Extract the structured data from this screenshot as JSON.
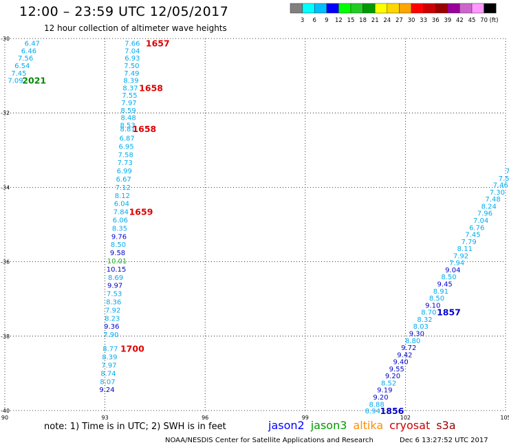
{
  "header": {
    "title": "12:00 – 23:59 UTC 12/05/2017",
    "subtitle": "12 hour collection of altimeter wave heights"
  },
  "colorbar": {
    "labels": [
      "3",
      "6",
      "9",
      "12",
      "15",
      "18",
      "21",
      "24",
      "27",
      "30",
      "33",
      "36",
      "39",
      "42",
      "45",
      "70"
    ],
    "unit": "(ft)",
    "colors": [
      "#808080",
      "#00ffff",
      "#00bfff",
      "#0000ff",
      "#00ff00",
      "#22cc22",
      "#009900",
      "#ffff00",
      "#ffd700",
      "#ffa500",
      "#ff0000",
      "#cc0000",
      "#990000",
      "#990099",
      "#cc66cc",
      "#ff99ff",
      "#000000"
    ]
  },
  "footer": {
    "note": "note:  1) Time is in UTC; 2) SWH is in feet",
    "credit": "NOAA/NESDIS Center for Satellite Applications and Research",
    "timestamp": "Dec  6 13:27:52 UTC 2017"
  },
  "legend": [
    {
      "name": "jason2",
      "color": "#0000ff"
    },
    {
      "name": "jason3",
      "color": "#009900"
    },
    {
      "name": "altika",
      "color": "#ff8c00"
    },
    {
      "name": "cryosat",
      "color": "#cc0000"
    },
    {
      "name": "s3a",
      "color": "#990000"
    }
  ],
  "chart_data": {
    "type": "scatter",
    "title": "12:00 – 23:59 UTC 12/05/2017",
    "xlim": [
      90,
      105
    ],
    "ylim": [
      -40,
      -30
    ],
    "x_ticks": [
      "90",
      "93",
      "96",
      "99",
      "102",
      "105"
    ],
    "y_ticks": [
      "-30",
      "-32",
      "-34",
      "-36",
      "-38",
      "-40"
    ],
    "grid": true,
    "points": [
      {
        "x": 90.82,
        "y": -30.12,
        "label": "6.47",
        "color": "#00aaee"
      },
      {
        "x": 90.72,
        "y": -30.32,
        "label": "6.46",
        "color": "#00aaee"
      },
      {
        "x": 90.62,
        "y": -30.52,
        "label": "7.56",
        "color": "#00aaee"
      },
      {
        "x": 90.52,
        "y": -30.72,
        "label": "6.54",
        "color": "#00aaee"
      },
      {
        "x": 90.42,
        "y": -30.92,
        "label": "7.45",
        "color": "#00aaee"
      },
      {
        "x": 90.32,
        "y": -31.12,
        "label": "7.09",
        "color": "#00aaee"
      },
      {
        "x": 93.82,
        "y": -30.12,
        "label": "7.66",
        "color": "#00aaee"
      },
      {
        "x": 93.82,
        "y": -30.32,
        "label": "7.04",
        "color": "#00aaee"
      },
      {
        "x": 93.82,
        "y": -30.52,
        "label": "6.93",
        "color": "#00aaee"
      },
      {
        "x": 93.8,
        "y": -30.72,
        "label": "7.50",
        "color": "#00aaee"
      },
      {
        "x": 93.8,
        "y": -30.92,
        "label": "7.49",
        "color": "#00aaee"
      },
      {
        "x": 93.78,
        "y": -31.12,
        "label": "8.39",
        "color": "#00aaee"
      },
      {
        "x": 93.76,
        "y": -31.32,
        "label": "8.37",
        "color": "#00aaee"
      },
      {
        "x": 93.74,
        "y": -31.52,
        "label": "7.55",
        "color": "#00aaee"
      },
      {
        "x": 93.72,
        "y": -31.72,
        "label": "7.97",
        "color": "#00aaee"
      },
      {
        "x": 93.7,
        "y": -31.92,
        "label": "8.59",
        "color": "#00aaee"
      },
      {
        "x": 93.7,
        "y": -32.12,
        "label": "8.48",
        "color": "#00aaee"
      },
      {
        "x": 93.68,
        "y": -32.32,
        "label": "8.53",
        "color": "#00aaee"
      },
      {
        "x": 93.68,
        "y": -32.42,
        "label": "8.81",
        "color": "#00aaee"
      },
      {
        "x": 93.66,
        "y": -32.67,
        "label": "6.87",
        "color": "#00aaee"
      },
      {
        "x": 93.64,
        "y": -32.89,
        "label": "6.95",
        "color": "#00aaee"
      },
      {
        "x": 93.62,
        "y": -33.11,
        "label": "7.58",
        "color": "#00aaee"
      },
      {
        "x": 93.6,
        "y": -33.33,
        "label": "7.73",
        "color": "#00aaee"
      },
      {
        "x": 93.58,
        "y": -33.55,
        "label": "6.99",
        "color": "#00aaee"
      },
      {
        "x": 93.56,
        "y": -33.77,
        "label": "6.67",
        "color": "#00aaee"
      },
      {
        "x": 93.54,
        "y": -33.99,
        "label": "7.12",
        "color": "#00aaee"
      },
      {
        "x": 93.52,
        "y": -34.21,
        "label": "8.12",
        "color": "#00aaee"
      },
      {
        "x": 93.5,
        "y": -34.43,
        "label": "6.04",
        "color": "#00aaee"
      },
      {
        "x": 93.48,
        "y": -34.65,
        "label": "7.84",
        "color": "#00aaee"
      },
      {
        "x": 93.46,
        "y": -34.87,
        "label": "6.06",
        "color": "#00aaee"
      },
      {
        "x": 93.44,
        "y": -35.09,
        "label": "8.35",
        "color": "#00aaee"
      },
      {
        "x": 93.42,
        "y": -35.31,
        "label": "9.76",
        "color": "#0000cc"
      },
      {
        "x": 93.4,
        "y": -35.53,
        "label": "8.50",
        "color": "#00aaee"
      },
      {
        "x": 93.38,
        "y": -35.75,
        "label": "9.58",
        "color": "#0000cc"
      },
      {
        "x": 93.36,
        "y": -35.97,
        "label": "10.01",
        "color": "#22aa22"
      },
      {
        "x": 93.34,
        "y": -36.19,
        "label": "10.15",
        "color": "#0000cc"
      },
      {
        "x": 93.32,
        "y": -36.41,
        "label": "8.69",
        "color": "#00aaee"
      },
      {
        "x": 93.3,
        "y": -36.63,
        "label": "9.97",
        "color": "#0000cc"
      },
      {
        "x": 93.28,
        "y": -36.85,
        "label": "7.53",
        "color": "#00aaee"
      },
      {
        "x": 93.26,
        "y": -37.07,
        "label": "8.36",
        "color": "#00aaee"
      },
      {
        "x": 93.24,
        "y": -37.29,
        "label": "7.92",
        "color": "#00aaee"
      },
      {
        "x": 93.22,
        "y": -37.51,
        "label": "8.23",
        "color": "#00aaee"
      },
      {
        "x": 93.2,
        "y": -37.73,
        "label": "9.36",
        "color": "#0000cc"
      },
      {
        "x": 93.18,
        "y": -37.95,
        "label": "7.90",
        "color": "#00aaee"
      },
      {
        "x": 93.16,
        "y": -38.33,
        "label": "8.77",
        "color": "#00aaee"
      },
      {
        "x": 93.14,
        "y": -38.55,
        "label": "8.39",
        "color": "#00aaee"
      },
      {
        "x": 93.12,
        "y": -38.77,
        "label": "7.97",
        "color": "#00aaee"
      },
      {
        "x": 93.1,
        "y": -38.99,
        "label": "8.74",
        "color": "#00aaee"
      },
      {
        "x": 93.08,
        "y": -39.21,
        "label": "8.07",
        "color": "#00aaee"
      },
      {
        "x": 93.06,
        "y": -39.43,
        "label": "9.24",
        "color": "#0000cc"
      },
      {
        "x": 105.2,
        "y": -33.38,
        "label": "7.",
        "color": "#00aaee"
      },
      {
        "x": 105.1,
        "y": -33.55,
        "label": "7.",
        "color": "#00aaee"
      },
      {
        "x": 104.95,
        "y": -33.75,
        "label": "7.5",
        "color": "#00aaee"
      },
      {
        "x": 104.85,
        "y": -33.93,
        "label": "7.46",
        "color": "#00aaee"
      },
      {
        "x": 104.75,
        "y": -34.12,
        "label": "7.30",
        "color": "#00aaee"
      },
      {
        "x": 104.62,
        "y": -34.31,
        "label": "7.48",
        "color": "#00aaee"
      },
      {
        "x": 104.5,
        "y": -34.5,
        "label": "8.24",
        "color": "#00aaee"
      },
      {
        "x": 104.38,
        "y": -34.69,
        "label": "7.96",
        "color": "#00aaee"
      },
      {
        "x": 104.26,
        "y": -34.88,
        "label": "7.04",
        "color": "#00aaee"
      },
      {
        "x": 104.14,
        "y": -35.07,
        "label": "6.76",
        "color": "#00aaee"
      },
      {
        "x": 104.02,
        "y": -35.26,
        "label": "7.45",
        "color": "#00aaee"
      },
      {
        "x": 103.9,
        "y": -35.45,
        "label": "7.79",
        "color": "#00aaee"
      },
      {
        "x": 103.78,
        "y": -35.64,
        "label": "8.11",
        "color": "#00aaee"
      },
      {
        "x": 103.66,
        "y": -35.83,
        "label": "7.92",
        "color": "#00aaee"
      },
      {
        "x": 103.54,
        "y": -36.02,
        "label": "7.94",
        "color": "#00aaee"
      },
      {
        "x": 103.42,
        "y": -36.21,
        "label": "9.04",
        "color": "#0000cc"
      },
      {
        "x": 103.3,
        "y": -36.4,
        "label": "8.50",
        "color": "#00aaee"
      },
      {
        "x": 103.18,
        "y": -36.59,
        "label": "9.45",
        "color": "#0000cc"
      },
      {
        "x": 103.06,
        "y": -36.78,
        "label": "8.91",
        "color": "#00aaee"
      },
      {
        "x": 102.94,
        "y": -36.97,
        "label": "8.50",
        "color": "#00aaee"
      },
      {
        "x": 102.82,
        "y": -37.16,
        "label": "9.10",
        "color": "#0000cc"
      },
      {
        "x": 102.7,
        "y": -37.35,
        "label": "8.70",
        "color": "#00aaee"
      },
      {
        "x": 102.58,
        "y": -37.54,
        "label": "8.32",
        "color": "#00aaee"
      },
      {
        "x": 102.46,
        "y": -37.73,
        "label": "8.03",
        "color": "#00aaee"
      },
      {
        "x": 102.34,
        "y": -37.92,
        "label": "9.30",
        "color": "#0000cc"
      },
      {
        "x": 102.22,
        "y": -38.11,
        "label": "8.80",
        "color": "#00aaee"
      },
      {
        "x": 102.1,
        "y": -38.3,
        "label": "9.72",
        "color": "#0000cc"
      },
      {
        "x": 101.98,
        "y": -38.49,
        "label": "9.42",
        "color": "#0000cc"
      },
      {
        "x": 101.86,
        "y": -38.68,
        "label": "9.40",
        "color": "#0000cc"
      },
      {
        "x": 101.74,
        "y": -38.87,
        "label": "9.55",
        "color": "#0000cc"
      },
      {
        "x": 101.62,
        "y": -39.06,
        "label": "9.20",
        "color": "#0000cc"
      },
      {
        "x": 101.5,
        "y": -39.25,
        "label": "8.52",
        "color": "#00aaee"
      },
      {
        "x": 101.38,
        "y": -39.44,
        "label": "9.19",
        "color": "#0000cc"
      },
      {
        "x": 101.26,
        "y": -39.63,
        "label": "9.20",
        "color": "#0000cc"
      },
      {
        "x": 101.14,
        "y": -39.82,
        "label": "8.88",
        "color": "#00aaee"
      },
      {
        "x": 101.02,
        "y": -40.0,
        "label": "8.94",
        "color": "#00aaee"
      }
    ],
    "annotations": [
      {
        "x": 94.58,
        "y": -30.12,
        "text": "1657",
        "color": "#dd0000"
      },
      {
        "x": 94.38,
        "y": -31.32,
        "text": "1658",
        "color": "#dd0000"
      },
      {
        "x": 94.18,
        "y": -32.42,
        "text": "1658",
        "color": "#dd0000"
      },
      {
        "x": 94.08,
        "y": -34.65,
        "text": "1659",
        "color": "#dd0000"
      },
      {
        "x": 93.82,
        "y": -38.33,
        "text": "1700",
        "color": "#dd0000"
      },
      {
        "x": 90.88,
        "y": -31.12,
        "text": "2021",
        "color": "#008800"
      },
      {
        "x": 103.3,
        "y": -37.35,
        "text": "1857",
        "color": "#0000cc"
      },
      {
        "x": 101.6,
        "y": -40.0,
        "text": "1856",
        "color": "#0000cc"
      }
    ]
  }
}
